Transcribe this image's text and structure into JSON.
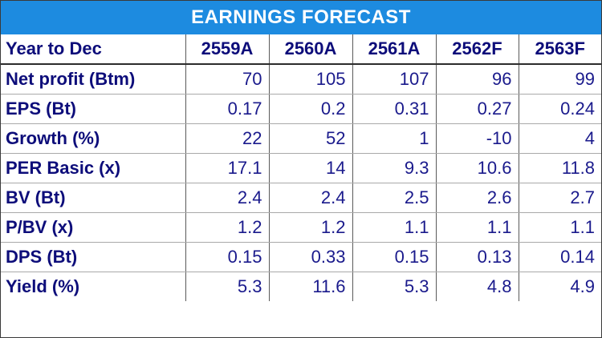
{
  "title": "EARNINGS FORECAST",
  "header": {
    "label": "Year to Dec",
    "columns": [
      "2559A",
      "2560A",
      "2561A",
      "2562F",
      "2563F"
    ]
  },
  "rows": [
    {
      "label": "Net profit (Btm)",
      "values": [
        "70",
        "105",
        "107",
        "96",
        "99"
      ]
    },
    {
      "label": "EPS (Bt)",
      "values": [
        "0.17",
        "0.2",
        "0.31",
        "0.27",
        "0.24"
      ]
    },
    {
      "label": "Growth (%)",
      "values": [
        "22",
        "52",
        "1",
        "-10",
        "4"
      ]
    },
    {
      "label": "PER Basic (x)",
      "values": [
        "17.1",
        "14",
        "9.3",
        "10.6",
        "11.8"
      ]
    },
    {
      "label": "BV (Bt)",
      "values": [
        "2.4",
        "2.4",
        "2.5",
        "2.6",
        "2.7"
      ]
    },
    {
      "label": "P/BV (x)",
      "values": [
        "1.2",
        "1.2",
        "1.1",
        "1.1",
        "1.1"
      ]
    },
    {
      "label": "DPS (Bt)",
      "values": [
        "0.15",
        "0.33",
        "0.15",
        "0.13",
        "0.14"
      ]
    },
    {
      "label": "Yield (%)",
      "values": [
        "5.3",
        "11.6",
        "5.3",
        "4.8",
        "4.9"
      ]
    }
  ],
  "colors": {
    "title_background": "#1d8be0",
    "title_text": "#ffffff",
    "body_text": "#1a1a8c"
  }
}
